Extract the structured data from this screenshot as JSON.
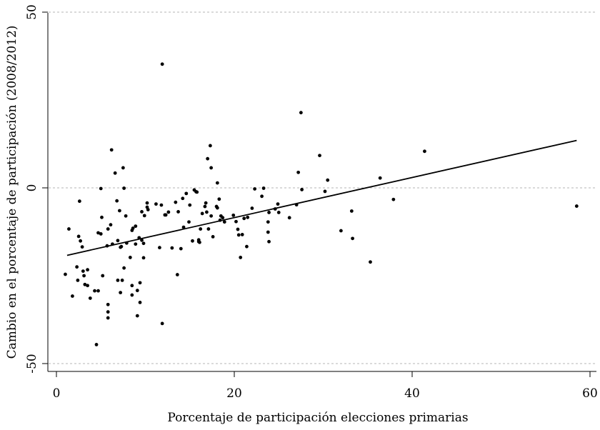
{
  "chart_data": {
    "type": "scatter",
    "title": "",
    "xlabel": "Porcentaje de participación elecciones primarias",
    "ylabel": "Cambio en el porcentaje de participación (2008/2012)",
    "xlim": [
      0,
      60
    ],
    "ylim": [
      -50,
      50
    ],
    "x_ticks": [
      0,
      20,
      40,
      60
    ],
    "x_tick_labels": [
      "0",
      "20",
      "40",
      "60"
    ],
    "y_ticks": [
      -50,
      0,
      50
    ],
    "y_tick_labels": [
      "-50",
      "0",
      "50"
    ],
    "grid": "horizontal dashed at y ticks",
    "legend": "none",
    "colors": {
      "points": "#000000",
      "fit_line": "#000000",
      "grid": "#b4b4b4"
    },
    "fit_line": {
      "x": [
        1.2,
        58.5
      ],
      "y": [
        -19.2,
        13.5
      ]
    },
    "points": [
      [
        1.0,
        -24.6
      ],
      [
        1.4,
        -11.7
      ],
      [
        1.8,
        -30.8
      ],
      [
        2.3,
        -22.5
      ],
      [
        2.4,
        -26.3
      ],
      [
        2.5,
        -13.8
      ],
      [
        2.7,
        -15.1
      ],
      [
        2.6,
        -3.8
      ],
      [
        2.9,
        -16.8
      ],
      [
        3.0,
        -23.7
      ],
      [
        3.1,
        -25.0
      ],
      [
        3.2,
        -27.5
      ],
      [
        3.5,
        -23.3
      ],
      [
        3.5,
        -27.8
      ],
      [
        3.8,
        -31.4
      ],
      [
        4.3,
        -29.3
      ],
      [
        4.5,
        -44.6
      ],
      [
        4.7,
        -29.3
      ],
      [
        4.7,
        -12.8
      ],
      [
        5.0,
        -13.1
      ],
      [
        5.0,
        -0.2
      ],
      [
        5.1,
        -8.4
      ],
      [
        5.2,
        -25.0
      ],
      [
        5.7,
        -16.5
      ],
      [
        5.8,
        -11.7
      ],
      [
        5.8,
        -33.2
      ],
      [
        5.8,
        -35.3
      ],
      [
        5.8,
        -37.0
      ],
      [
        6.1,
        -10.5
      ],
      [
        6.2,
        10.8
      ],
      [
        6.3,
        -16.0
      ],
      [
        6.6,
        4.2
      ],
      [
        6.8,
        -3.7
      ],
      [
        6.9,
        -15.0
      ],
      [
        6.9,
        -26.3
      ],
      [
        7.1,
        -6.5
      ],
      [
        7.2,
        -29.8
      ],
      [
        7.2,
        -16.9
      ],
      [
        7.3,
        -16.7
      ],
      [
        7.4,
        -26.3
      ],
      [
        7.5,
        5.7
      ],
      [
        7.6,
        -0.1
      ],
      [
        7.6,
        -22.8
      ],
      [
        7.8,
        -8.0
      ],
      [
        7.9,
        -15.7
      ],
      [
        8.3,
        -19.8
      ],
      [
        8.5,
        -12.1
      ],
      [
        8.5,
        -27.8
      ],
      [
        8.5,
        -30.5
      ],
      [
        8.6,
        -11.5
      ],
      [
        8.9,
        -10.9
      ],
      [
        8.9,
        -16.0
      ],
      [
        9.1,
        -36.4
      ],
      [
        9.1,
        -29.2
      ],
      [
        9.3,
        -14.2
      ],
      [
        9.4,
        -27.0
      ],
      [
        9.4,
        -32.6
      ],
      [
        9.6,
        -6.8
      ],
      [
        9.6,
        -14.9
      ],
      [
        9.8,
        -19.9
      ],
      [
        9.8,
        -15.8
      ],
      [
        9.9,
        -7.9
      ],
      [
        10.2,
        -4.3
      ],
      [
        10.2,
        -5.5
      ],
      [
        10.3,
        -6.2
      ],
      [
        11.2,
        -4.6
      ],
      [
        11.6,
        -17.0
      ],
      [
        11.8,
        -4.9
      ],
      [
        11.9,
        35.2
      ],
      [
        11.9,
        -38.6
      ],
      [
        12.2,
        -7.7
      ],
      [
        12.3,
        -7.7
      ],
      [
        12.6,
        -6.9
      ],
      [
        13.0,
        -17.1
      ],
      [
        13.4,
        -4.1
      ],
      [
        13.6,
        -24.7
      ],
      [
        13.7,
        -6.8
      ],
      [
        14.0,
        -17.3
      ],
      [
        14.2,
        -3.0
      ],
      [
        14.3,
        -11.2
      ],
      [
        14.6,
        -1.6
      ],
      [
        14.9,
        -9.7
      ],
      [
        15.0,
        -4.9
      ],
      [
        15.3,
        -15.1
      ],
      [
        15.5,
        -0.6
      ],
      [
        15.7,
        -1.1
      ],
      [
        15.8,
        -1.2
      ],
      [
        16.0,
        -15.3
      ],
      [
        16.0,
        -14.8
      ],
      [
        16.1,
        -15.5
      ],
      [
        16.2,
        -11.7
      ],
      [
        16.4,
        -7.3
      ],
      [
        16.7,
        -5.3
      ],
      [
        16.8,
        -4.3
      ],
      [
        16.9,
        -6.9
      ],
      [
        17.0,
        8.3
      ],
      [
        17.1,
        -11.7
      ],
      [
        17.3,
        12.0
      ],
      [
        17.4,
        5.7
      ],
      [
        17.4,
        -8.0
      ],
      [
        17.6,
        -13.9
      ],
      [
        18.0,
        -5.3
      ],
      [
        18.1,
        1.4
      ],
      [
        18.1,
        -5.7
      ],
      [
        18.3,
        -3.2
      ],
      [
        18.4,
        -9.2
      ],
      [
        18.5,
        -8.0
      ],
      [
        18.7,
        -8.5
      ],
      [
        18.9,
        -9.7
      ],
      [
        19.9,
        -7.8
      ],
      [
        20.2,
        -9.6
      ],
      [
        20.4,
        -11.8
      ],
      [
        20.5,
        -13.4
      ],
      [
        20.7,
        -19.8
      ],
      [
        20.9,
        -13.3
      ],
      [
        21.1,
        -8.7
      ],
      [
        21.4,
        -16.7
      ],
      [
        21.5,
        -8.4
      ],
      [
        22.0,
        -5.8
      ],
      [
        22.3,
        -0.3
      ],
      [
        23.1,
        -2.4
      ],
      [
        23.3,
        -0.1
      ],
      [
        23.8,
        -9.7
      ],
      [
        23.8,
        -12.6
      ],
      [
        23.9,
        -15.3
      ],
      [
        23.9,
        -7.0
      ],
      [
        24.6,
        -6.0
      ],
      [
        24.9,
        -4.6
      ],
      [
        25.0,
        -7.0
      ],
      [
        26.2,
        -8.5
      ],
      [
        27.0,
        -4.8
      ],
      [
        27.2,
        4.4
      ],
      [
        27.5,
        21.4
      ],
      [
        27.6,
        -0.5
      ],
      [
        29.6,
        9.2
      ],
      [
        30.2,
        -1.0
      ],
      [
        30.5,
        2.2
      ],
      [
        32.0,
        -12.2
      ],
      [
        33.2,
        -6.6
      ],
      [
        33.3,
        -14.4
      ],
      [
        35.3,
        -21.1
      ],
      [
        36.4,
        2.8
      ],
      [
        37.9,
        -3.3
      ],
      [
        41.4,
        10.4
      ],
      [
        58.5,
        -5.2
      ]
    ]
  }
}
